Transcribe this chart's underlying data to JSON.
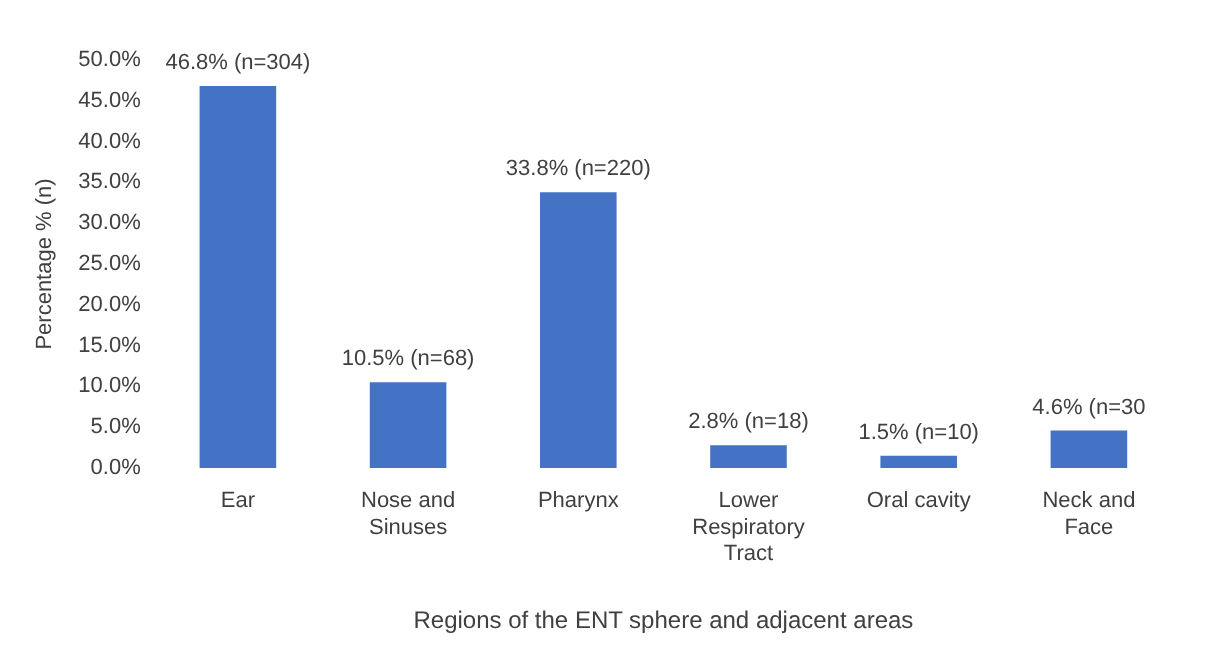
{
  "chart_data": {
    "type": "bar",
    "xlabel": "Regions of the ENT sphere and adjacent areas",
    "ylabel": "Percentage % (n)",
    "categories": [
      "Ear",
      "Nose and Sinuses",
      "Pharynx",
      "Lower Respiratory Tract",
      "Oral cavity",
      "Neck and Face"
    ],
    "values": [
      46.8,
      10.5,
      33.8,
      2.8,
      1.5,
      4.6
    ],
    "value_labels": [
      "46.8% (n=304)",
      "10.5% (n=68)",
      "33.8% (n=220)",
      "2.8% (n=18)",
      "1.5% (n=10)",
      "4.6% (n=30"
    ],
    "color": "#4472c4",
    "ylim": [
      0,
      50
    ],
    "yticks": [
      {
        "value": 0,
        "label": "0.0%"
      },
      {
        "value": 5,
        "label": "5.0%"
      },
      {
        "value": 10,
        "label": "10.0%"
      },
      {
        "value": 15,
        "label": "15.0%"
      },
      {
        "value": 20,
        "label": "20.0%"
      },
      {
        "value": 25,
        "label": "25.0%"
      },
      {
        "value": 30,
        "label": "30.0%"
      },
      {
        "value": 35,
        "label": "35.0%"
      },
      {
        "value": 40,
        "label": "40.0%"
      },
      {
        "value": 45,
        "label": "45.0%"
      },
      {
        "value": 50,
        "label": "50.0%"
      }
    ],
    "grid": false,
    "legend": false
  }
}
